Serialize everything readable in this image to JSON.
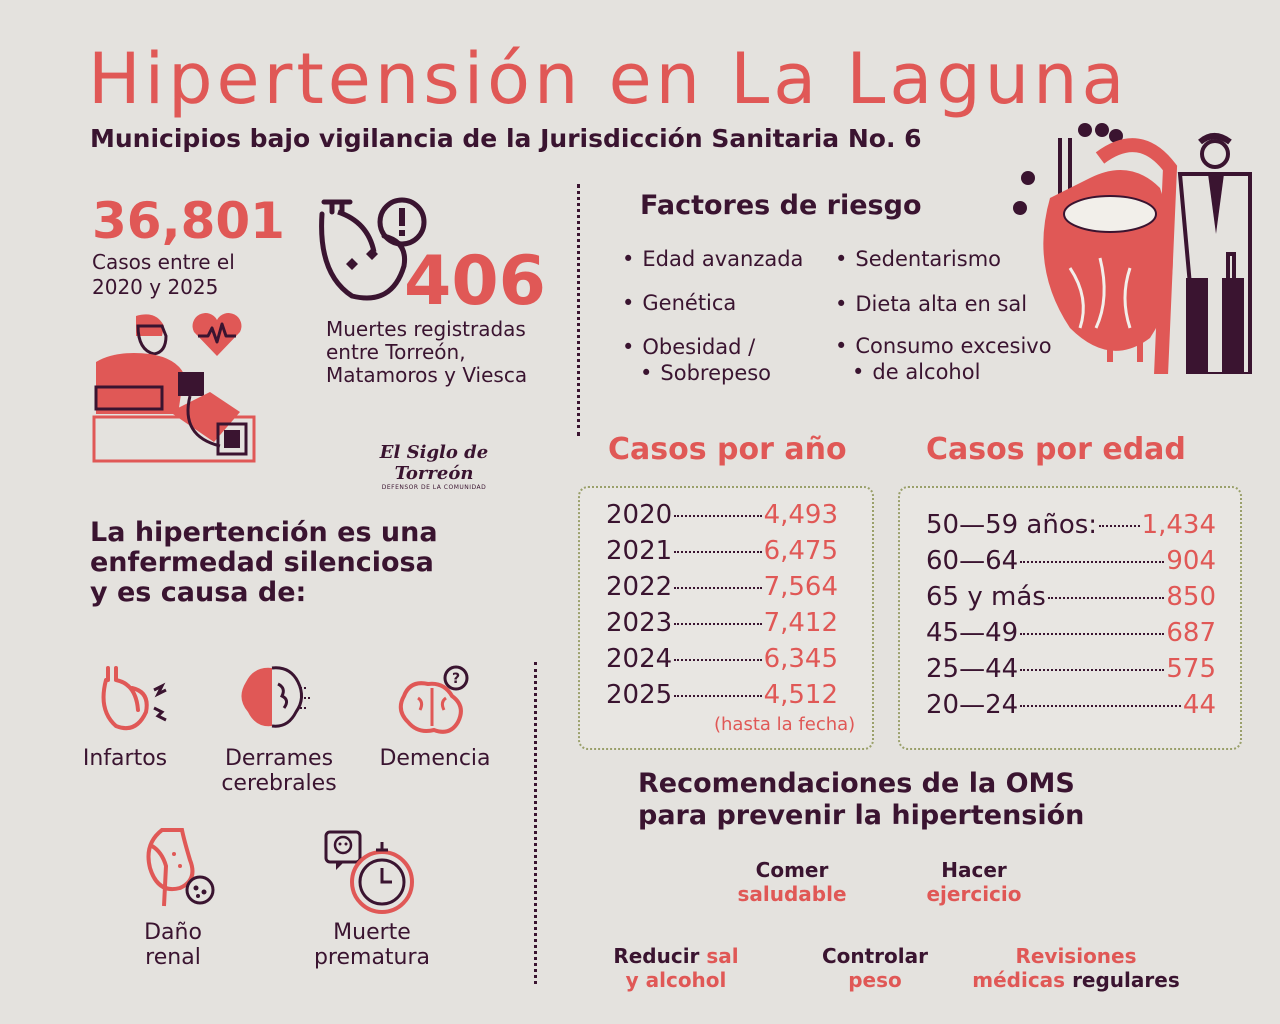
{
  "title": "Hipertensión en La Laguna",
  "subtitle": "Municipios bajo vigilancia de la Jurisdicción Sanitaria No. 6",
  "cases": {
    "number": "36,801",
    "label_line1": "Casos entre el",
    "label_line2": "2020 y 2025"
  },
  "deaths": {
    "number": "406",
    "label_line1": "Muertes registradas",
    "label_line2": "entre Torreón,",
    "label_line3": "Matamoros y Viesca"
  },
  "logo": {
    "name": "El Siglo de Torreón",
    "tagline": "DEFENSOR DE LA COMUNIDAD"
  },
  "risk": {
    "title": "Factores de riesgo",
    "left": [
      "Edad avanzada",
      "Genética",
      "Obesidad /",
      "Sobrepeso"
    ],
    "right": [
      "Sedentarismo",
      "Dieta alta en sal",
      "Consumo excesivo",
      "de alcohol"
    ]
  },
  "silent": {
    "line1": "La hipertención es una",
    "line2": "enfermedad silenciosa",
    "line3": "y es causa de:"
  },
  "causes": {
    "infartos": "Infartos",
    "derrames_1": "Derrames",
    "derrames_2": "cerebrales",
    "demencia": "Demencia",
    "dano_1": "Daño",
    "dano_2": "renal",
    "muerte_1": "Muerte",
    "muerte_2": "prematura"
  },
  "by_year": {
    "title": "Casos por año",
    "rows": [
      {
        "k": "2020",
        "v": "4,493"
      },
      {
        "k": "2021",
        "v": "6,475"
      },
      {
        "k": "2022",
        "v": "7,564"
      },
      {
        "k": "2023",
        "v": "7,412"
      },
      {
        "k": "2024",
        "v": "6,345"
      },
      {
        "k": "2025",
        "v": "4,512"
      }
    ],
    "note": "(hasta la fecha)"
  },
  "by_age": {
    "title": "Casos por edad",
    "rows": [
      {
        "k": "50—59 años:",
        "v": "1,434"
      },
      {
        "k": "60—64",
        "v": "904"
      },
      {
        "k": "65 y más",
        "v": "850"
      },
      {
        "k": "45—49",
        "v": "687"
      },
      {
        "k": "25—44",
        "v": "575"
      },
      {
        "k": "20—24",
        "v": "44"
      }
    ]
  },
  "oms": {
    "title_line1": "Recomendaciones de la OMS",
    "title_line2": "para prevenir la hipertensión",
    "comer_1": "Comer",
    "comer_2": "saludable",
    "hacer_1": "Hacer",
    "hacer_2": "ejercicio",
    "reducir_1a": "Reducir",
    "reducir_1b": "sal",
    "reducir_2": "y alcohol",
    "controlar_1": "Controlar",
    "controlar_2": "peso",
    "revisiones_1": "Revisiones",
    "revisiones_2a": "médicas",
    "revisiones_2b": "regulares"
  },
  "colors": {
    "accent": "#e05856",
    "dark": "#3a1430",
    "background": "#e4e2de"
  }
}
